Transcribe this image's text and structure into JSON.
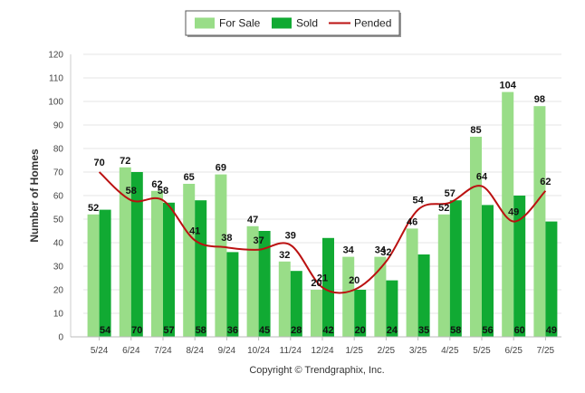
{
  "chart_data": {
    "type": "bar",
    "categories": [
      "5/24",
      "6/24",
      "7/24",
      "8/24",
      "9/24",
      "10/24",
      "11/24",
      "12/24",
      "1/25",
      "2/25",
      "3/25",
      "4/25",
      "5/25",
      "6/25",
      "7/25"
    ],
    "series": [
      {
        "name": "For Sale",
        "kind": "bar",
        "color": "#99dd88",
        "values": [
          52,
          72,
          62,
          65,
          69,
          47,
          32,
          20,
          34,
          34,
          46,
          52,
          85,
          104,
          98
        ]
      },
      {
        "name": "Sold",
        "kind": "bar",
        "color": "#11aa33",
        "values": [
          54,
          70,
          57,
          58,
          36,
          45,
          28,
          42,
          20,
          24,
          35,
          58,
          56,
          60,
          49
        ]
      },
      {
        "name": "Pended",
        "kind": "line",
        "color": "#bb1111",
        "values": [
          70,
          58,
          58,
          41,
          38,
          37,
          39,
          21,
          20,
          32,
          54,
          57,
          64,
          49,
          62
        ]
      }
    ],
    "ylabel": "Number of Homes",
    "xlabel": "",
    "ylim": [
      0,
      120
    ],
    "yticks": [
      0,
      10,
      20,
      30,
      40,
      50,
      60,
      70,
      80,
      90,
      100,
      110,
      120
    ],
    "grid": true,
    "legend_position": "top-center",
    "credit": "Copyright © Trendgraphix, Inc."
  }
}
